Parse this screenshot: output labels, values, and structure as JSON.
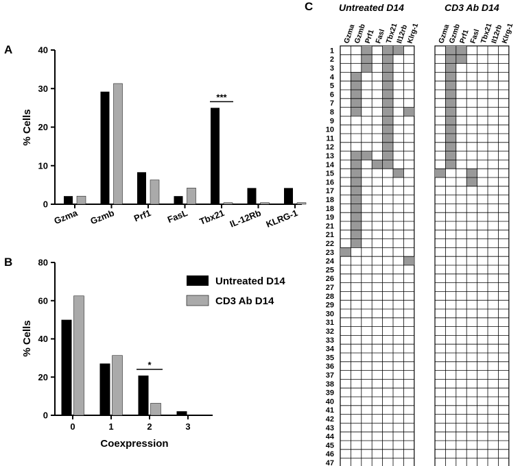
{
  "panels": {
    "a": "A",
    "b": "B",
    "c": "C"
  },
  "colors": {
    "untreated": "#000000",
    "cd3": "#aaaaaa",
    "grid_on": "#999999"
  },
  "chart_data": [
    {
      "type": "bar",
      "id": "A",
      "categories": [
        "Gzma",
        "Gzmb",
        "Prf1",
        "FasL",
        "Tbx21",
        "IL-12Rb",
        "KLRG-1"
      ],
      "series": [
        {
          "name": "Untreated D14",
          "values": [
            2.1,
            29.2,
            8.3,
            2.1,
            25.0,
            4.2,
            4.2
          ]
        },
        {
          "name": "CD3 Ab D14",
          "values": [
            2.1,
            31.3,
            6.3,
            4.2,
            0.4,
            0.4,
            0.4
          ]
        }
      ],
      "ylabel": "% Cells",
      "ylim": [
        0,
        40
      ],
      "yticks": [
        "0",
        "10",
        "20",
        "30",
        "40"
      ],
      "annotations": [
        {
          "text": "***",
          "category": "Tbx21"
        }
      ]
    },
    {
      "type": "bar",
      "id": "B",
      "categories": [
        "0",
        "1",
        "2",
        "3"
      ],
      "series": [
        {
          "name": "Untreated D14",
          "values": [
            50.0,
            27.1,
            20.8,
            2.1
          ]
        },
        {
          "name": "CD3 Ab D14",
          "values": [
            62.5,
            31.3,
            6.3,
            0
          ]
        }
      ],
      "xlabel": "Coexpression",
      "ylabel": "% Cells",
      "ylim": [
        0,
        80
      ],
      "yticks": [
        "0",
        "20",
        "40",
        "60",
        "80"
      ],
      "annotations": [
        {
          "text": "*",
          "category": "2"
        }
      ],
      "legend": [
        "Untreated D14",
        "CD3 Ab D14"
      ]
    },
    {
      "type": "heatmap",
      "id": "C",
      "columns": [
        "Gzma",
        "Gzmb",
        "Prf1",
        "Fasl",
        "Tbx21",
        "Il12rb",
        "Klrg-1"
      ],
      "rows": [
        "1",
        "2",
        "3",
        "4",
        "5",
        "6",
        "7",
        "8",
        "9",
        "10",
        "11",
        "12",
        "13",
        "14",
        "15",
        "16",
        "17",
        "18",
        "18",
        "19",
        "21",
        "21",
        "22",
        "23",
        "24",
        "25",
        "26",
        "27",
        "28",
        "29",
        "30",
        "31",
        "32",
        "33",
        "34",
        "35",
        "36",
        "37",
        "38",
        "39",
        "40",
        "41",
        "42",
        "43",
        "44",
        "45",
        "46",
        "47",
        "48"
      ],
      "groups": [
        {
          "title": "Untreated D14",
          "filled": [
            [
              2,
              4,
              5
            ],
            [
              2,
              4
            ],
            [
              2,
              4
            ],
            [
              1,
              4
            ],
            [
              1,
              4
            ],
            [
              1,
              4
            ],
            [
              1,
              4
            ],
            [
              1,
              4,
              6
            ],
            [
              4
            ],
            [
              4
            ],
            [
              4
            ],
            [
              4
            ],
            [
              1,
              2,
              4
            ],
            [
              1,
              3,
              4
            ],
            [
              1,
              5
            ],
            [
              1
            ],
            [
              1
            ],
            [
              1
            ],
            [
              1
            ],
            [
              1
            ],
            [
              1
            ],
            [
              1
            ],
            [
              1
            ],
            [
              0
            ],
            [
              6
            ]
          ]
        },
        {
          "title": "CD3 Ab D14",
          "filled": [
            [
              1,
              2
            ],
            [
              1,
              2
            ],
            [
              1
            ],
            [
              1
            ],
            [
              1
            ],
            [
              1
            ],
            [
              1
            ],
            [
              1
            ],
            [
              1
            ],
            [
              1
            ],
            [
              1
            ],
            [
              1
            ],
            [
              1
            ],
            [
              1
            ],
            [
              0,
              3
            ],
            [
              3
            ]
          ]
        }
      ]
    }
  ]
}
